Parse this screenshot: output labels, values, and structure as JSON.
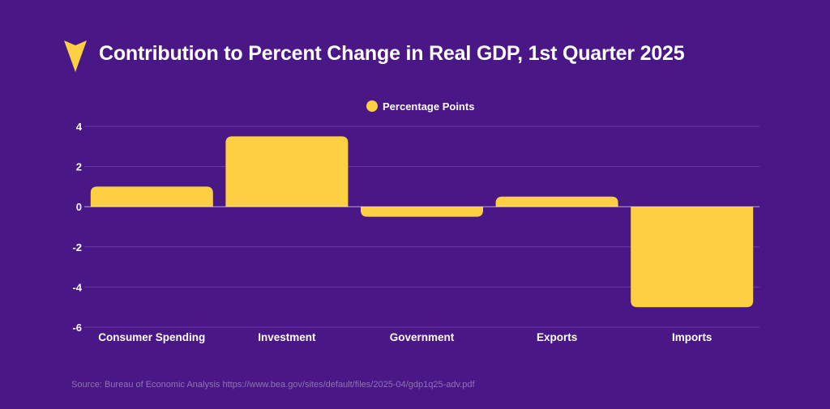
{
  "header": {
    "title": "Contribution to Percent Change in Real GDP, 1st Quarter 2025"
  },
  "logo_icon": "downward-triangle-logo-icon",
  "colors": {
    "background": "#4a1786",
    "bar": "#fdd044",
    "text": "#ffffff",
    "gridline": "#6a3aa3",
    "source_text": "#8f74b3"
  },
  "chart_data": {
    "type": "bar",
    "title": "Contribution to Percent Change in Real GDP, 1st Quarter 2025",
    "categories": [
      "Consumer Spending",
      "Investment",
      "Government",
      "Exports",
      "Imports"
    ],
    "series": [
      {
        "name": "Percentage Points",
        "values": [
          1.0,
          3.5,
          -0.5,
          0.5,
          -5.0
        ]
      }
    ],
    "xlabel": "",
    "ylabel": "",
    "ylim": [
      -6,
      4
    ],
    "yticks": [
      4,
      2,
      0,
      -2,
      -4,
      -6
    ],
    "ytick_labels": [
      "4",
      "2",
      "0",
      "-2",
      "-4",
      "-6"
    ],
    "grid": true,
    "legend": "top-center"
  },
  "footer": {
    "source": "Source: Bureau of Economic Analysis https://www.bea.gov/sites/default/files/2025-04/gdp1q25-adv.pdf"
  }
}
